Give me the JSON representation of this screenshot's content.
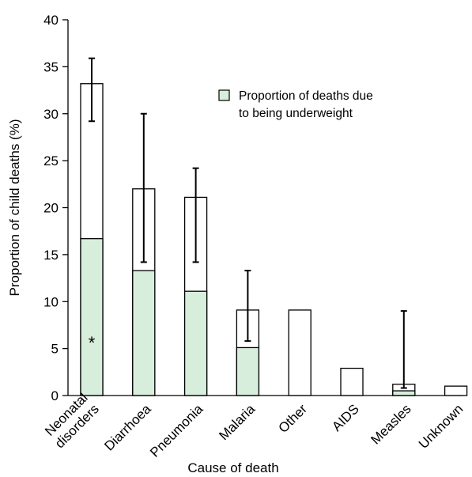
{
  "chart_data": {
    "type": "bar",
    "xlabel": "Cause of death",
    "ylabel": "Proportion of child deaths (%)",
    "ylim": [
      0,
      40
    ],
    "yticks": [
      0,
      5,
      10,
      15,
      20,
      25,
      30,
      35,
      40
    ],
    "grid": false,
    "categories": [
      [
        "Neonatal",
        "disorders"
      ],
      [
        "Diarrhoea"
      ],
      [
        "Pneumonia"
      ],
      [
        "Malaria"
      ],
      [
        "Other"
      ],
      [
        "AIDS"
      ],
      [
        "Measles"
      ],
      [
        "Unknown"
      ]
    ],
    "series": [
      {
        "role": "total",
        "values": [
          33.2,
          22.0,
          21.1,
          9.1,
          9.1,
          2.9,
          1.2,
          1.0
        ],
        "error_low": [
          29.2,
          14.2,
          14.2,
          5.8,
          null,
          null,
          0.8,
          null
        ],
        "error_high": [
          35.9,
          30.0,
          24.2,
          13.3,
          null,
          null,
          9.0,
          null
        ]
      },
      {
        "role": "underweight",
        "name": "Proportion of deaths due to being underweight",
        "values": [
          16.7,
          13.3,
          11.1,
          5.1,
          0,
          0,
          0.5,
          0
        ]
      }
    ],
    "legend": {
      "position": "top-right",
      "lines": [
        "Proportion of deaths due",
        "to being underweight"
      ]
    },
    "annotations": [
      {
        "category_index": 0,
        "text": "*"
      }
    ],
    "colors": {
      "underweight_fill": "#d8eedd",
      "total_fill": "#ffffff",
      "stroke": "#000000"
    }
  }
}
